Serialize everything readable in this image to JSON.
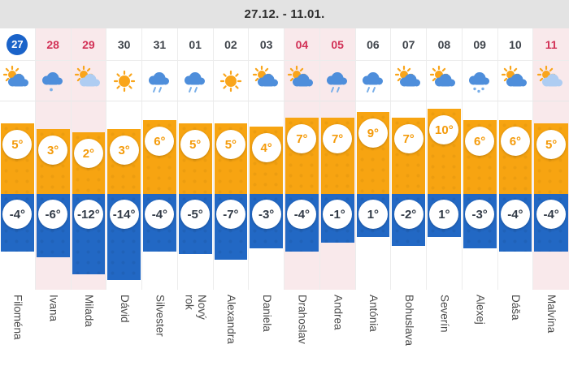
{
  "header": {
    "title": "27.12. - 11.01."
  },
  "colors": {
    "high_bar": "#F7A411",
    "low_bar": "#2268C4",
    "selected_day_badge": "#1A63C9",
    "holiday_text": "#D23156",
    "holiday_column_bg": "#F9E9EB",
    "header_bg": "#E3E3E3",
    "sun": "#F9A51B",
    "cloud": "#4E8EDB",
    "cloud_light": "#AECDF2",
    "precip": "#79AFE9"
  },
  "days": [
    {
      "date": "27",
      "selected": true,
      "holiday": false,
      "icon": "sun-cloud-icon",
      "high_label": "5°",
      "low_label": "-4°",
      "high": 5,
      "low": -4,
      "name": "Filoména"
    },
    {
      "date": "28",
      "selected": false,
      "holiday": true,
      "icon": "cloud-snow-light-icon",
      "high_label": "3°",
      "low_label": "-6°",
      "high": 3,
      "low": -6,
      "name": "Ivana"
    },
    {
      "date": "29",
      "selected": false,
      "holiday": true,
      "icon": "sun-cloud-light-icon",
      "high_label": "2°",
      "low_label": "-12°",
      "high": 2,
      "low": -12,
      "name": "Milada"
    },
    {
      "date": "30",
      "selected": false,
      "holiday": false,
      "icon": "sun-icon",
      "high_label": "3°",
      "low_label": "-14°",
      "high": 3,
      "low": -14,
      "name": "Dávid"
    },
    {
      "date": "31",
      "selected": false,
      "holiday": false,
      "icon": "cloud-rain-icon",
      "high_label": "6°",
      "low_label": "-4°",
      "high": 6,
      "low": -4,
      "name": "Silvester"
    },
    {
      "date": "01",
      "selected": false,
      "holiday": false,
      "icon": "cloud-rain-icon",
      "high_label": "5°",
      "low_label": "-5°",
      "high": 5,
      "low": -5,
      "name": "Nový\nrok"
    },
    {
      "date": "02",
      "selected": false,
      "holiday": false,
      "icon": "sun-icon",
      "high_label": "5°",
      "low_label": "-7°",
      "high": 5,
      "low": -7,
      "name": "Alexandra"
    },
    {
      "date": "03",
      "selected": false,
      "holiday": false,
      "icon": "sun-cloud-icon",
      "high_label": "4°",
      "low_label": "-3°",
      "high": 4,
      "low": -3,
      "name": "Daniela"
    },
    {
      "date": "04",
      "selected": false,
      "holiday": true,
      "icon": "sun-cloud-icon",
      "high_label": "7°",
      "low_label": "-4°",
      "high": 7,
      "low": -4,
      "name": "Drahoslav"
    },
    {
      "date": "05",
      "selected": false,
      "holiday": true,
      "icon": "cloud-rain-icon",
      "high_label": "7°",
      "low_label": "-1°",
      "high": 7,
      "low": -1,
      "name": "Andrea"
    },
    {
      "date": "06",
      "selected": false,
      "holiday": false,
      "icon": "cloud-rain-icon",
      "high_label": "9°",
      "low_label": "1°",
      "high": 9,
      "low": 1,
      "name": "Antónia"
    },
    {
      "date": "07",
      "selected": false,
      "holiday": false,
      "icon": "sun-cloud-icon",
      "high_label": "7°",
      "low_label": "-2°",
      "high": 7,
      "low": -2,
      "name": "Bohuslava"
    },
    {
      "date": "08",
      "selected": false,
      "holiday": false,
      "icon": "sun-cloud-icon",
      "high_label": "10°",
      "low_label": "1°",
      "high": 10,
      "low": 1,
      "name": "Severín"
    },
    {
      "date": "09",
      "selected": false,
      "holiday": false,
      "icon": "cloud-snow-icon",
      "high_label": "6°",
      "low_label": "-3°",
      "high": 6,
      "low": -3,
      "name": "Alexej"
    },
    {
      "date": "10",
      "selected": false,
      "holiday": false,
      "icon": "sun-cloud-icon",
      "high_label": "6°",
      "low_label": "-4°",
      "high": 6,
      "low": -4,
      "name": "Dáša"
    },
    {
      "date": "11",
      "selected": false,
      "holiday": true,
      "icon": "sun-cloud-light-icon",
      "high_label": "5°",
      "low_label": "-4°",
      "high": 5,
      "low": -4,
      "name": "Malvína"
    }
  ],
  "chart_data": {
    "type": "bar",
    "title": "27.12. - 11.01.",
    "categories": [
      "27",
      "28",
      "29",
      "30",
      "31",
      "01",
      "02",
      "03",
      "04",
      "05",
      "06",
      "07",
      "08",
      "09",
      "10",
      "11"
    ],
    "series": [
      {
        "name": "High (°C)",
        "values": [
          5,
          3,
          2,
          3,
          6,
          5,
          5,
          4,
          7,
          7,
          9,
          7,
          10,
          6,
          6,
          5
        ]
      },
      {
        "name": "Low (°C)",
        "values": [
          -4,
          -6,
          -12,
          -14,
          -4,
          -5,
          -7,
          -3,
          -4,
          -1,
          1,
          -2,
          1,
          -3,
          -4,
          -4
        ]
      }
    ],
    "legend_position": "none",
    "grid": false,
    "high_bar_color": "#F7A411",
    "low_bar_color": "#2268C4"
  }
}
